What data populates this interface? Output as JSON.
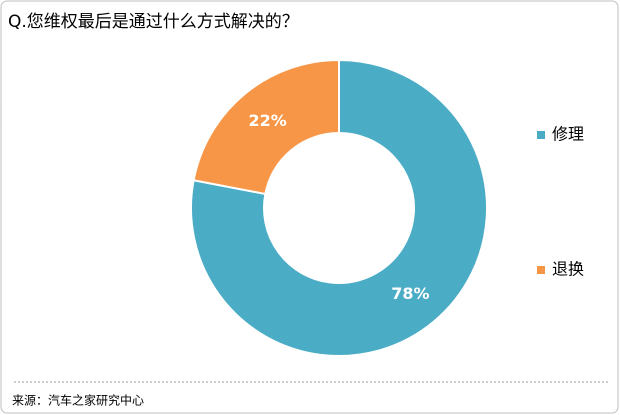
{
  "chart_data": {
    "type": "donut",
    "title": "Q.您维权最后是通过什么方式解决的？",
    "categories": [
      "修理",
      "退换"
    ],
    "values": [
      78,
      22
    ],
    "value_labels": [
      "78%",
      "22%"
    ],
    "colors": [
      "#4bacc6",
      "#f79646"
    ],
    "legend": "right",
    "source": "来源：汽车之家研究中心"
  }
}
